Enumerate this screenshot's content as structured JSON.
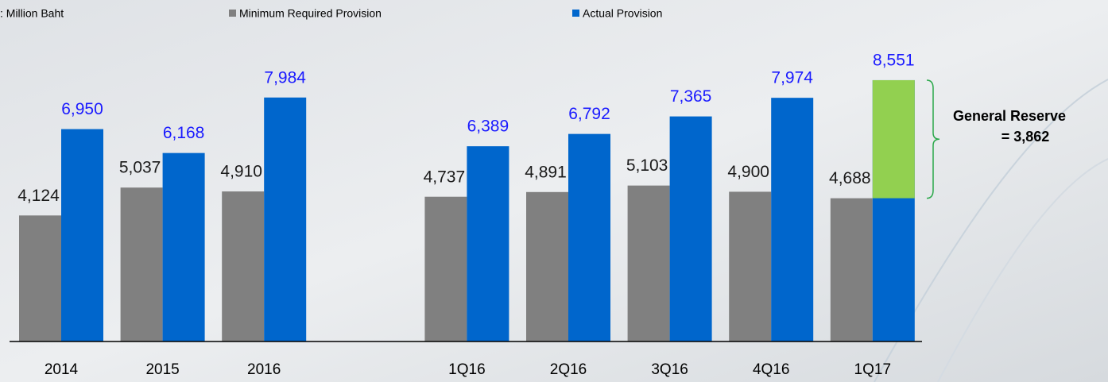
{
  "chart_data": {
    "type": "bar",
    "unit_label": ": Million Baht",
    "categories": [
      "2014",
      "2015",
      "2016",
      null,
      "1Q16",
      "2Q16",
      "3Q16",
      "4Q16",
      "1Q17"
    ],
    "series": [
      {
        "name": "Minimum Required Provision",
        "color": "#808080",
        "values": [
          4124,
          5037,
          4910,
          null,
          4737,
          4891,
          5103,
          4900,
          4688
        ],
        "value_labels": [
          "4,124",
          "5,037",
          "4,910",
          null,
          "4,737",
          "4,891",
          "5,103",
          "4,900",
          "4,688"
        ]
      },
      {
        "name": "Actual Provision",
        "color": "#0066cc",
        "values": [
          6950,
          6168,
          7984,
          null,
          6389,
          6792,
          7365,
          7974,
          8551
        ],
        "value_labels": [
          "6,950",
          "6,168",
          "7,984",
          null,
          "6,389",
          "6,792",
          "7,365",
          "7,974",
          "8,551"
        ]
      }
    ],
    "annotation": {
      "label": "General Reserve",
      "value": 3862,
      "value_label": "= 3,862",
      "color": "#92d050",
      "category_index": 8
    },
    "ylim": [
      0,
      10000
    ]
  }
}
